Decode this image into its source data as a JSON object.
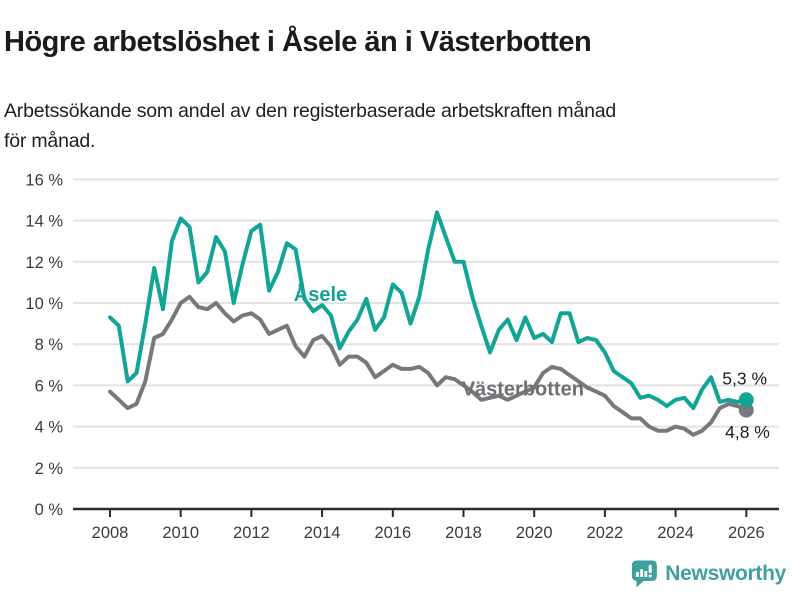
{
  "header": {
    "title": "Högre arbetslöshet i Åsele än i Västerbotten",
    "subtitle": "Arbetssökande som andel av den registerbaserade arbetskraften månad\nför månad."
  },
  "footer": {
    "brand": "Newsworthy",
    "brand_color": "#3FA19D",
    "logo_icon": "bar-chart-speech-bubble"
  },
  "chart_data": {
    "type": "line",
    "title": "Högre arbetslöshet i Åsele än i Västerbotten",
    "xlabel": "",
    "ylabel": "",
    "unit": "%",
    "grid": true,
    "gridline_color": "#E2E2E2",
    "axis_color": "#2B2B2B",
    "tick_label_color": "#3B3B3B",
    "x_axis": {
      "range": [
        2007.0,
        2026.5
      ],
      "ticks": [
        2008,
        2010,
        2012,
        2014,
        2016,
        2018,
        2020,
        2022,
        2024,
        2026
      ],
      "tick_labels": [
        "2008",
        "2010",
        "2012",
        "2014",
        "2016",
        "2018",
        "2020",
        "2022",
        "2024",
        "2026"
      ]
    },
    "y_axis": {
      "range": [
        0,
        16.8
      ],
      "ticks": [
        0,
        2,
        4,
        6,
        8,
        10,
        12,
        14,
        16
      ],
      "tick_labels": [
        "0 %",
        "2 %",
        "4 %",
        "6 %",
        "8 %",
        "10 %",
        "12 %",
        "14 %",
        "16 %"
      ]
    },
    "x": [
      2008.0,
      2008.25,
      2008.5,
      2008.75,
      2009.0,
      2009.25,
      2009.5,
      2009.75,
      2010.0,
      2010.25,
      2010.5,
      2010.75,
      2011.0,
      2011.25,
      2011.5,
      2011.75,
      2012.0,
      2012.25,
      2012.5,
      2012.75,
      2013.0,
      2013.25,
      2013.5,
      2013.75,
      2014.0,
      2014.25,
      2014.5,
      2014.75,
      2015.0,
      2015.25,
      2015.5,
      2015.75,
      2016.0,
      2016.25,
      2016.5,
      2016.75,
      2017.0,
      2017.25,
      2017.5,
      2017.75,
      2018.0,
      2018.25,
      2018.5,
      2018.75,
      2019.0,
      2019.25,
      2019.5,
      2019.75,
      2020.0,
      2020.25,
      2020.5,
      2020.75,
      2021.0,
      2021.25,
      2021.5,
      2021.75,
      2022.0,
      2022.25,
      2022.5,
      2022.75,
      2023.0,
      2023.25,
      2023.5,
      2023.75,
      2024.0,
      2024.25,
      2024.5,
      2024.75,
      2025.0,
      2025.25,
      2025.5,
      2025.75,
      2026.0
    ],
    "series": [
      {
        "name": "Åsele",
        "color": "#12A495",
        "inline_label": {
          "x": 2013.2,
          "y": 10.1
        },
        "end_label": {
          "text": "5,3 %",
          "x": 2025.32,
          "y": 6.05
        },
        "end_value": 5.3,
        "values": [
          9.3,
          8.9,
          6.2,
          6.6,
          9.0,
          11.7,
          9.7,
          13.0,
          14.1,
          13.7,
          11.0,
          11.5,
          13.2,
          12.5,
          10.0,
          11.9,
          13.5,
          13.8,
          10.6,
          11.5,
          12.9,
          12.6,
          10.2,
          9.6,
          9.9,
          9.4,
          7.8,
          8.6,
          9.2,
          10.2,
          8.7,
          9.3,
          10.9,
          10.5,
          9.0,
          10.3,
          12.6,
          14.4,
          13.2,
          12.0,
          12.0,
          10.3,
          8.9,
          7.6,
          8.7,
          9.2,
          8.2,
          9.3,
          8.3,
          8.5,
          8.1,
          9.5,
          9.5,
          8.1,
          8.3,
          8.2,
          7.6,
          6.7,
          6.4,
          6.1,
          5.4,
          5.5,
          5.3,
          5.0,
          5.3,
          5.4,
          4.9,
          5.8,
          6.4,
          5.2,
          5.3,
          5.2,
          5.3
        ]
      },
      {
        "name": "Västerbotten",
        "color": "#77787B",
        "label_color": "#6E6F73",
        "inline_label": {
          "x": 2017.95,
          "y": 5.5
        },
        "end_label": {
          "text": "4,8 %",
          "x": 2025.4,
          "y": 3.45
        },
        "end_value": 4.8,
        "values": [
          5.7,
          5.3,
          4.9,
          5.1,
          6.2,
          8.3,
          8.5,
          9.2,
          10.0,
          10.3,
          9.8,
          9.7,
          10.0,
          9.5,
          9.1,
          9.4,
          9.5,
          9.2,
          8.5,
          8.7,
          8.9,
          7.9,
          7.4,
          8.2,
          8.4,
          7.9,
          7.0,
          7.4,
          7.4,
          7.1,
          6.4,
          6.7,
          7.0,
          6.8,
          6.8,
          6.9,
          6.6,
          6.0,
          6.4,
          6.3,
          6.0,
          5.7,
          5.3,
          5.4,
          5.5,
          5.3,
          5.5,
          5.7,
          5.9,
          6.6,
          6.9,
          6.8,
          6.5,
          6.2,
          5.9,
          5.7,
          5.5,
          5.0,
          4.7,
          4.4,
          4.4,
          4.0,
          3.8,
          3.8,
          4.0,
          3.9,
          3.6,
          3.8,
          4.2,
          4.9,
          5.1,
          5.0,
          4.8
        ]
      }
    ]
  }
}
